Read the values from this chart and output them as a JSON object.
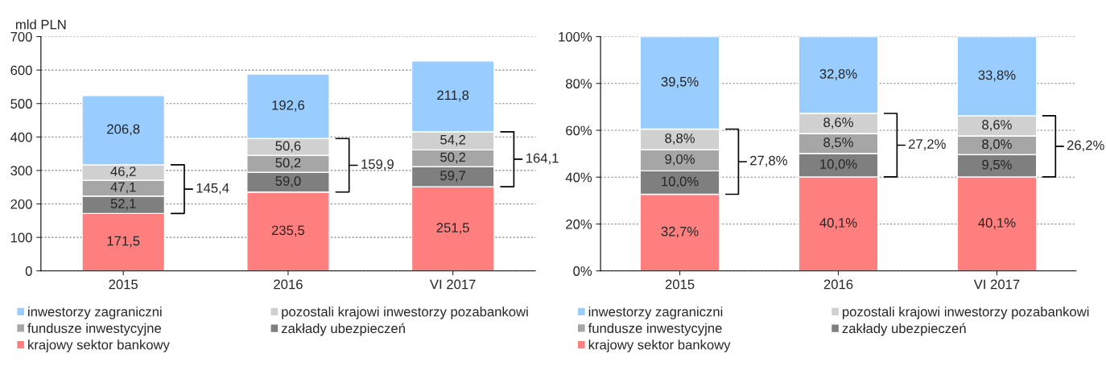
{
  "chart_data": [
    {
      "type": "bar",
      "stacked": true,
      "ylabel": "mld PLN",
      "categories": [
        "2015",
        "2016",
        "VI 2017"
      ],
      "ylim": [
        0,
        700
      ],
      "yticks": [
        0,
        100,
        200,
        300,
        400,
        500,
        600,
        700
      ],
      "grid": "y",
      "legend": "bottom",
      "series": [
        {
          "name": "krajowy sektor bankowy",
          "color": "#ff7f7f",
          "values": [
            171.5,
            235.5,
            251.5
          ],
          "value_labels": [
            "171,5",
            "235,5",
            "251,5"
          ]
        },
        {
          "name": "zakłady ubezpieczeń",
          "color": "#7f7f7f",
          "values": [
            52.1,
            59.0,
            59.7
          ],
          "value_labels": [
            "52,1",
            "59,0",
            "59,7"
          ]
        },
        {
          "name": "fundusze inwestycyjne",
          "color": "#a6a6a6",
          "values": [
            47.1,
            50.2,
            50.2
          ],
          "value_labels": [
            "47,1",
            "50,2",
            "50,2"
          ]
        },
        {
          "name": "pozostali krajowi inwestorzy pozabankowi",
          "color": "#d0d0d0",
          "values": [
            46.2,
            50.6,
            54.2
          ],
          "value_labels": [
            "46,2",
            "50,6",
            "54,2"
          ]
        },
        {
          "name": "inwestorzy zagraniczni",
          "color": "#99ccff",
          "values": [
            206.8,
            192.6,
            211.8
          ],
          "value_labels": [
            "206,8",
            "192,6",
            "211,8"
          ]
        }
      ],
      "annotations": [
        "145,4",
        "159,9",
        "164,1"
      ]
    },
    {
      "type": "bar",
      "stacked": true,
      "categories": [
        "2015",
        "2016",
        "VI 2017"
      ],
      "ylim": [
        0,
        100
      ],
      "yticks": [
        {
          "value": 0,
          "label": "0%"
        },
        {
          "value": 20,
          "label": "20%"
        },
        {
          "value": 40,
          "label": "40%"
        },
        {
          "value": 60,
          "label": "60%"
        },
        {
          "value": 80,
          "label": "80%"
        },
        {
          "value": 100,
          "label": "100%"
        }
      ],
      "grid": "y",
      "legend": "bottom",
      "series": [
        {
          "name": "krajowy sektor bankowy",
          "color": "#ff7f7f",
          "values": [
            32.7,
            40.1,
            40.1
          ],
          "value_labels": [
            "32,7%",
            "40,1%",
            "40,1%"
          ]
        },
        {
          "name": "zakłady ubezpieczeń",
          "color": "#7f7f7f",
          "values": [
            10.0,
            10.0,
            9.5
          ],
          "value_labels": [
            "10,0%",
            "10,0%",
            "9,5%"
          ]
        },
        {
          "name": "fundusze inwestycyjne",
          "color": "#a6a6a6",
          "values": [
            9.0,
            8.5,
            8.0
          ],
          "value_labels": [
            "9,0%",
            "8,5%",
            "8,0%"
          ]
        },
        {
          "name": "pozostali krajowi inwestorzy pozabankowi",
          "color": "#d0d0d0",
          "values": [
            8.8,
            8.6,
            8.6
          ],
          "value_labels": [
            "8,8%",
            "8,6%",
            "8,6%"
          ]
        },
        {
          "name": "inwestorzy zagraniczni",
          "color": "#99ccff",
          "values": [
            39.5,
            32.8,
            33.8
          ],
          "value_labels": [
            "39,5%",
            "32,8%",
            "33,8%"
          ]
        }
      ],
      "annotations": [
        "27,8%",
        "27,2%",
        "26,2%"
      ]
    }
  ]
}
